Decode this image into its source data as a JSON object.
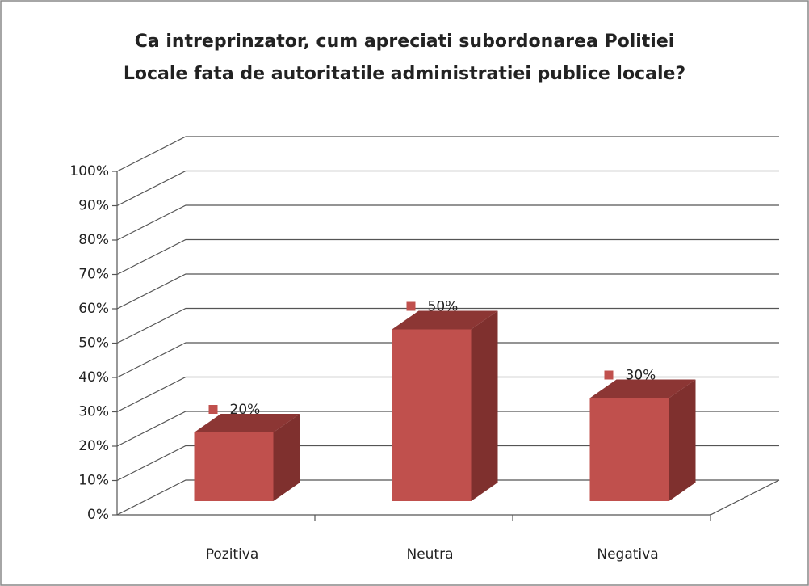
{
  "chart_data": {
    "type": "bar3d",
    "title": [
      "Ca intreprinzator, cum apreciati subordonarea Politiei",
      "Locale fata de autoritatile administratiei publice locale?"
    ],
    "categories": [
      "Pozitiva",
      "Neutra",
      "Negativa"
    ],
    "values": [
      20,
      50,
      30
    ],
    "value_labels": [
      "20%",
      "50%",
      "30%"
    ],
    "color": "#c0504d",
    "ylim": [
      0,
      100
    ],
    "yticks": [
      {
        "value": 0,
        "label": "0%"
      },
      {
        "value": 10,
        "label": "10%"
      },
      {
        "value": 20,
        "label": "20%"
      },
      {
        "value": 30,
        "label": "30%"
      },
      {
        "value": 40,
        "label": "40%"
      },
      {
        "value": 50,
        "label": "50%"
      },
      {
        "value": 60,
        "label": "60%"
      },
      {
        "value": 70,
        "label": "70%"
      },
      {
        "value": 80,
        "label": "80%"
      },
      {
        "value": 90,
        "label": "90%"
      },
      {
        "value": 100,
        "label": "100%"
      }
    ],
    "grid": true
  }
}
